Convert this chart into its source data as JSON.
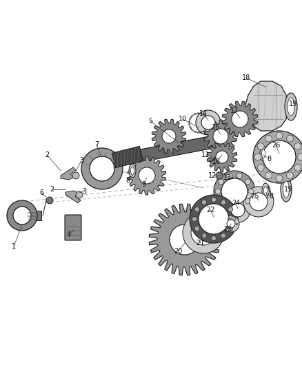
{
  "bg_color": "#ffffff",
  "lc": "#1a1a1a",
  "figsize": [
    4.38,
    5.33
  ],
  "dpi": 100,
  "gray_dark": "#2a2a2a",
  "gray_mid": "#888888",
  "gray_light": "#cccccc",
  "gray_med": "#aaaaaa",
  "shaft_fill": "#555555",
  "axis_line_color": "#999999"
}
